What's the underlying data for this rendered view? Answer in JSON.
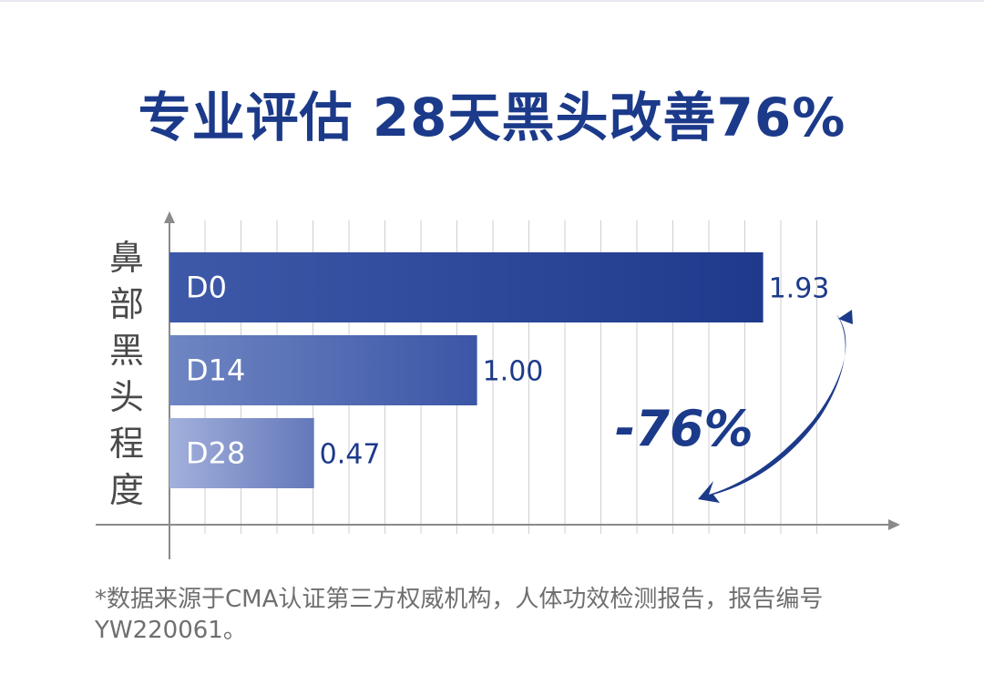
{
  "title": "专业评估 28天黑头改善76%",
  "chart_data": {
    "type": "bar",
    "orientation": "horizontal",
    "title": "专业评估 28天黑头改善76%",
    "ylabel": "鼻部黑头程度",
    "xlabel": "",
    "categories": [
      "D0",
      "D14",
      "D28"
    ],
    "values": [
      1.93,
      1.0,
      0.47
    ],
    "value_labels": [
      "1.93",
      "1.00",
      "0.47"
    ],
    "xlim": [
      0,
      2.34
    ],
    "grid": true,
    "annotation": "-76%",
    "colors": {
      "D0": [
        "#3e59a8",
        "#1f3a8c"
      ],
      "D14": [
        "#6f86c3",
        "#3c56a6"
      ],
      "D28": [
        "#a2b0db",
        "#6478bb"
      ],
      "text": "#1c3a8a",
      "grid": "#cfcfcf",
      "axis": "#8a8a8a"
    }
  },
  "footnote": "*数据来源于CMA认证第三方权威机构，人体功效检测报告，报告编号YW220061。"
}
